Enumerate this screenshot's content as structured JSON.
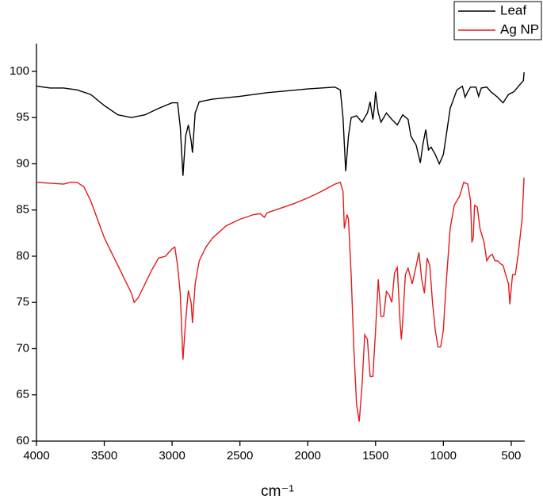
{
  "chart_data": {
    "type": "line",
    "x_label": "cm⁻¹",
    "xlim": [
      4000,
      400
    ],
    "xticks": [
      4000,
      3500,
      3000,
      2500,
      2000,
      1500,
      1000,
      500
    ],
    "ylim": [
      60,
      103
    ],
    "yticks": [
      60,
      65,
      70,
      75,
      80,
      85,
      90,
      95,
      100
    ],
    "legend": "top-right",
    "series": [
      {
        "name": "Leaf",
        "color": "#000000",
        "x": [
          4000,
          3900,
          3800,
          3700,
          3600,
          3500,
          3400,
          3300,
          3200,
          3100,
          3000,
          2960,
          2940,
          2920,
          2900,
          2880,
          2860,
          2850,
          2830,
          2800,
          2700,
          2500,
          2300,
          2000,
          1800,
          1760,
          1740,
          1720,
          1700,
          1680,
          1640,
          1600,
          1560,
          1540,
          1520,
          1510,
          1500,
          1480,
          1460,
          1420,
          1380,
          1340,
          1300,
          1260,
          1240,
          1200,
          1170,
          1150,
          1130,
          1110,
          1090,
          1060,
          1030,
          1000,
          980,
          950,
          900,
          860,
          840,
          820,
          800,
          760,
          740,
          720,
          680,
          650,
          600,
          560,
          520,
          480,
          440,
          410,
          405
        ],
        "values": [
          98.4,
          98.2,
          98.2,
          98.0,
          97.5,
          96.3,
          95.3,
          95.0,
          95.3,
          96.0,
          96.6,
          96.6,
          94,
          88.7,
          93,
          94.2,
          92.5,
          91.2,
          95.5,
          96.7,
          97.0,
          97.3,
          97.7,
          98.1,
          98.3,
          98.0,
          95,
          89.2,
          93,
          95.0,
          95.2,
          94.5,
          95.5,
          96.7,
          94.8,
          96,
          97.8,
          95.5,
          94.5,
          95.5,
          94.8,
          94.2,
          95.3,
          94.8,
          93,
          92,
          90.1,
          92.2,
          93.7,
          91.5,
          91.8,
          91,
          90.0,
          91,
          93,
          96,
          98,
          98.4,
          97.2,
          97.8,
          98.3,
          98.3,
          97.3,
          98.2,
          98.3,
          97.8,
          97.2,
          96.6,
          97.5,
          97.8,
          98.5,
          99.0,
          99.9
        ]
      },
      {
        "name": "Ag NP",
        "color": "#e41a1c",
        "x": [
          4000,
          3900,
          3800,
          3750,
          3700,
          3650,
          3600,
          3550,
          3500,
          3450,
          3400,
          3350,
          3300,
          3280,
          3250,
          3200,
          3150,
          3100,
          3050,
          3000,
          2980,
          2960,
          2940,
          2920,
          2900,
          2880,
          2860,
          2850,
          2830,
          2800,
          2750,
          2700,
          2600,
          2500,
          2400,
          2350,
          2320,
          2300,
          2200,
          2100,
          2000,
          1900,
          1800,
          1760,
          1740,
          1730,
          1710,
          1700,
          1680,
          1660,
          1640,
          1620,
          1600,
          1580,
          1560,
          1540,
          1520,
          1500,
          1480,
          1460,
          1440,
          1420,
          1400,
          1380,
          1360,
          1340,
          1320,
          1310,
          1300,
          1280,
          1260,
          1230,
          1200,
          1180,
          1160,
          1140,
          1120,
          1100,
          1080,
          1060,
          1040,
          1020,
          1000,
          980,
          950,
          920,
          880,
          850,
          820,
          800,
          790,
          780,
          770,
          750,
          730,
          700,
          680,
          660,
          640,
          620,
          600,
          580,
          560,
          540,
          520,
          510,
          500,
          490,
          470,
          450,
          420,
          405
        ],
        "values": [
          88.0,
          87.9,
          87.8,
          88.0,
          88.0,
          87.5,
          86,
          84,
          82,
          80.5,
          79,
          77.5,
          76,
          75,
          75.5,
          77,
          78.5,
          79.8,
          80,
          80.8,
          81,
          79,
          76,
          68.8,
          73,
          76.3,
          75,
          72.8,
          77,
          79.5,
          81,
          82,
          83.3,
          84,
          84.5,
          84.6,
          84.2,
          84.7,
          85.2,
          85.7,
          86.3,
          87,
          87.8,
          88.0,
          87,
          83,
          84.5,
          84,
          78,
          70,
          64,
          62.1,
          66,
          71.5,
          71,
          67,
          67,
          72,
          77.5,
          73.5,
          73.5,
          76.2,
          75.8,
          75,
          78.2,
          78.8,
          73,
          71,
          73,
          78,
          78.7,
          77,
          79,
          80.4,
          77.5,
          76,
          79.8,
          79,
          75,
          72,
          70.2,
          70.2,
          72,
          77,
          83,
          85.5,
          86.5,
          88,
          87.8,
          86,
          81.5,
          82,
          85.5,
          85.3,
          83,
          81.5,
          79.5,
          80,
          80.2,
          79.5,
          79.5,
          79.2,
          79,
          78,
          77,
          74.8,
          76.5,
          78,
          78,
          80,
          84,
          88.5
        ]
      }
    ]
  }
}
